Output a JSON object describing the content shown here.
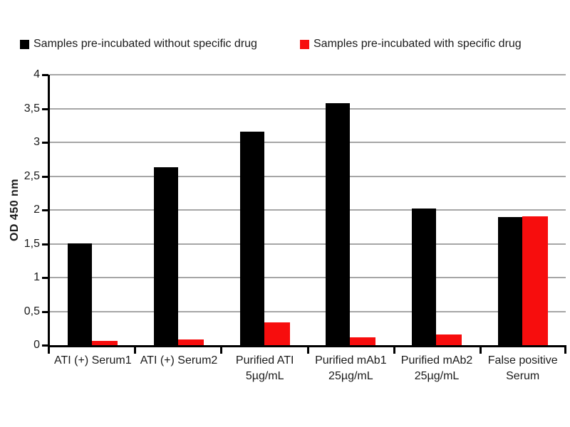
{
  "chart_data": {
    "type": "bar",
    "title": "",
    "xlabel": "",
    "ylabel": "OD 450 nm",
    "ylim": [
      0,
      4
    ],
    "ytick_step": 0.5,
    "decimal_separator": ",",
    "grid": true,
    "legend_position": "top",
    "categories": [
      "ATI (+) Serum1",
      "ATI (+) Serum2",
      "Purified ATI\n5µg/mL",
      "Purified mAb1\n25µg/mL",
      "Purified mAb2\n25µg/mL",
      "False positive\nSerum"
    ],
    "series": [
      {
        "name": "Samples pre-incubated without specific drug",
        "color": "#000000",
        "values": [
          1.51,
          2.63,
          3.16,
          3.58,
          2.02,
          1.9
        ]
      },
      {
        "name": "Samples pre-incubated with specific drug",
        "color": "#f70d0d",
        "values": [
          0.06,
          0.08,
          0.34,
          0.12,
          0.16,
          1.91
        ]
      }
    ],
    "gridline_color": "#a6a6a6",
    "axis_color": "#000000",
    "text_color": "#1a1a1a"
  }
}
